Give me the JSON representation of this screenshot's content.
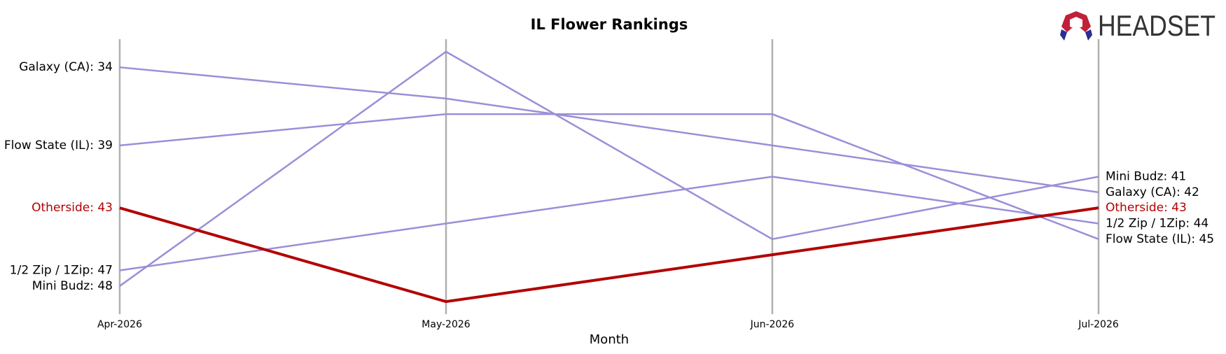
{
  "chart_data": {
    "type": "line",
    "title": "IL Flower Rankings",
    "x_label": "Month",
    "logo": "HEADSET",
    "categories": [
      "Apr-2026",
      "May-2026",
      "Jun-2026",
      "Jul-2026"
    ],
    "ylim": [
      32.2,
      49.8
    ],
    "y_inverted": true,
    "series": [
      {
        "name": "Galaxy (CA)",
        "color": "#9a8fd8",
        "values": [
          34,
          36,
          39,
          42
        ],
        "value_labels": [
          "Galaxy (CA): 34",
          null,
          null,
          "Galaxy (CA): 42"
        ]
      },
      {
        "name": "Flow State (IL)",
        "color": "#9a8fd8",
        "values": [
          39,
          37,
          37,
          45
        ],
        "value_labels": [
          "Flow State (IL): 39",
          null,
          null,
          "Flow State (IL): 45"
        ]
      },
      {
        "name": "1/2 Zip / 1Zip",
        "color": "#9a8fd8",
        "values": [
          47,
          44,
          41,
          44
        ],
        "value_labels": [
          "1/2 Zip / 1Zip: 47",
          null,
          null,
          "1/2 Zip / 1Zip: 44"
        ]
      },
      {
        "name": "Mini Budz",
        "color": "#9a8fd8",
        "values": [
          48,
          33,
          45,
          41
        ],
        "value_labels": [
          "Mini Budz: 48",
          null,
          null,
          "Mini Budz: 41"
        ]
      },
      {
        "name": "Otherside",
        "color": "#b30000",
        "highlight": true,
        "values": [
          43,
          49,
          46,
          43
        ],
        "value_labels": [
          "Otherside: 43",
          null,
          null,
          "Otherside: 43"
        ]
      }
    ]
  }
}
